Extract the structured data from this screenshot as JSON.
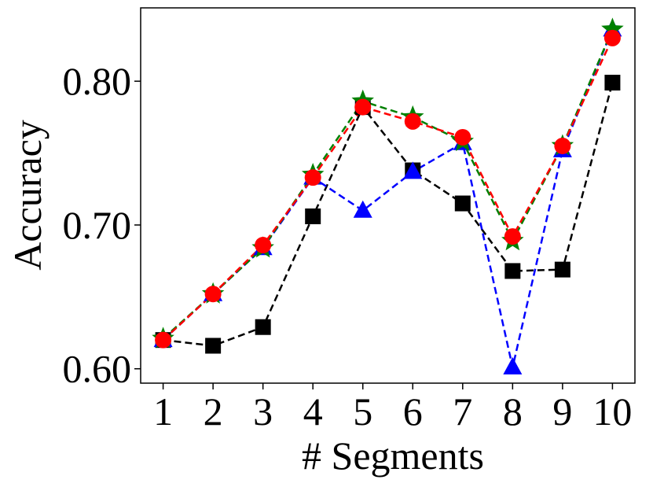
{
  "chart_data": {
    "type": "line",
    "title": "",
    "xlabel": "# Segments",
    "ylabel": "Accuracy",
    "x": [
      1,
      2,
      3,
      4,
      5,
      6,
      7,
      8,
      9,
      10
    ],
    "xticks": [
      "1",
      "2",
      "3",
      "4",
      "5",
      "6",
      "7",
      "8",
      "9",
      "10"
    ],
    "yticks": [
      "0.60",
      "0.70",
      "0.80"
    ],
    "ytick_values": [
      0.6,
      0.7,
      0.8
    ],
    "xlim": [
      0.55,
      10.45
    ],
    "ylim": [
      0.59,
      0.851
    ],
    "grid": false,
    "legend": "none",
    "series": [
      {
        "marker": "square",
        "color": "#000000",
        "linestyle": "dashed",
        "values": [
          0.62,
          0.616,
          0.629,
          0.706,
          0.782,
          0.738,
          0.715,
          0.668,
          0.669,
          0.799
        ]
      },
      {
        "marker": "triangle",
        "color": "#0000ff",
        "linestyle": "dashed",
        "values": [
          0.62,
          0.652,
          0.684,
          0.733,
          0.71,
          0.737,
          0.757,
          0.601,
          0.752,
          0.836
        ]
      },
      {
        "marker": "star",
        "color": "#008000",
        "linestyle": "dashed",
        "values": [
          0.621,
          0.652,
          0.684,
          0.735,
          0.786,
          0.775,
          0.758,
          0.689,
          0.755,
          0.836
        ]
      },
      {
        "marker": "circle",
        "color": "#ff0000",
        "linestyle": "dashed",
        "values": [
          0.62,
          0.652,
          0.686,
          0.733,
          0.782,
          0.772,
          0.761,
          0.692,
          0.755,
          0.83
        ]
      }
    ]
  }
}
